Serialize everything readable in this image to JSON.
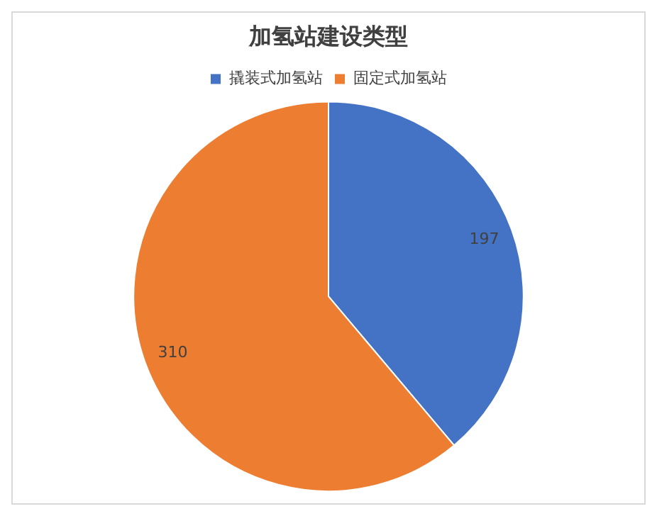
{
  "chart_data": {
    "type": "pie",
    "title": "加氢站建设类型",
    "categories": [
      "撬装式加氢站",
      "固定式加氢站"
    ],
    "values": [
      197,
      310
    ],
    "colors": [
      "#4472c4",
      "#ed7d31"
    ],
    "legend": "top",
    "data_labels": true
  }
}
